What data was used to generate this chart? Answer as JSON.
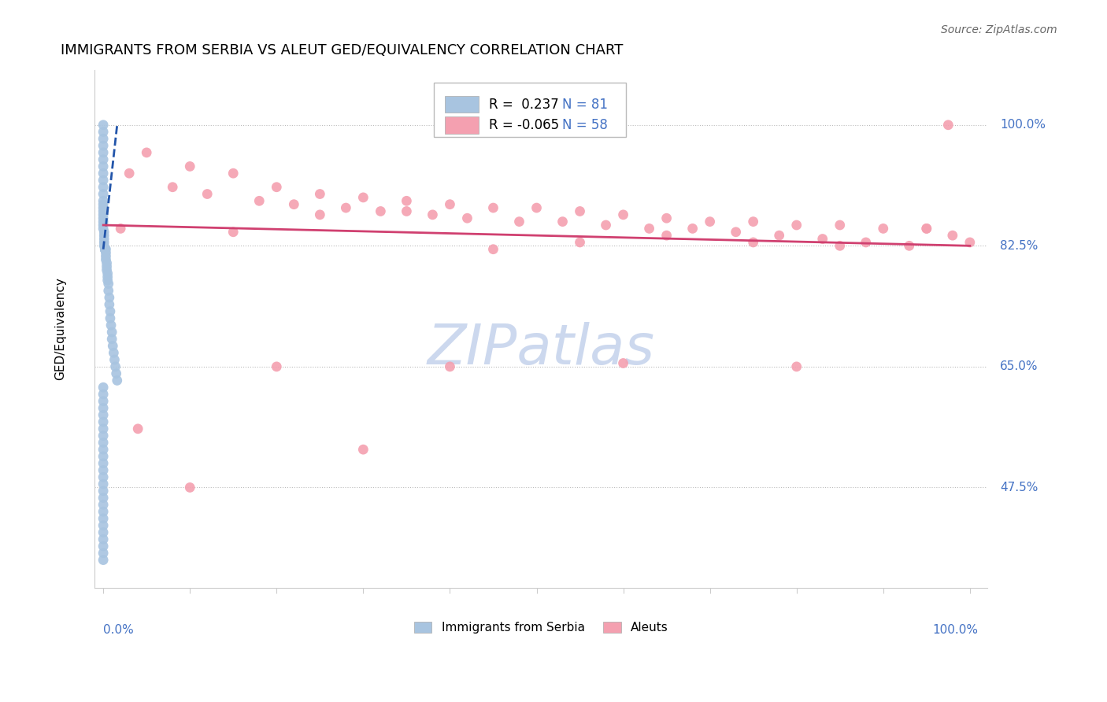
{
  "title": "IMMIGRANTS FROM SERBIA VS ALEUT GED/EQUIVALENCY CORRELATION CHART",
  "source": "Source: ZipAtlas.com",
  "ylabel": "GED/Equivalency",
  "y_tick_vals": [
    100.0,
    82.5,
    65.0,
    47.5
  ],
  "legend_r1": "R =  0.237",
  "legend_n1": "N = 81",
  "legend_r2": "R = -0.065",
  "legend_n2": "N = 58",
  "serbia_color": "#a8c4e0",
  "aleut_color": "#f4a0b0",
  "serbia_line_color": "#2255aa",
  "aleut_line_color": "#d04070",
  "watermark_color": "#ccd8ee",
  "serbia_x": [
    0.0,
    0.0,
    0.0,
    0.0,
    0.0,
    0.0,
    0.0,
    0.0,
    0.0,
    0.0,
    0.0,
    0.0,
    0.0,
    0.0,
    0.0,
    0.0,
    0.0,
    0.0,
    0.0,
    0.0,
    0.1,
    0.1,
    0.1,
    0.1,
    0.1,
    0.2,
    0.2,
    0.2,
    0.2,
    0.2,
    0.3,
    0.3,
    0.3,
    0.3,
    0.4,
    0.4,
    0.4,
    0.5,
    0.5,
    0.5,
    0.6,
    0.6,
    0.7,
    0.7,
    0.8,
    0.8,
    0.9,
    1.0,
    1.0,
    1.1,
    1.2,
    1.3,
    1.4,
    1.5,
    1.6,
    0.0,
    0.0,
    0.0,
    0.0,
    0.0,
    0.0,
    0.0,
    0.0,
    0.0,
    0.0,
    0.0,
    0.0,
    0.0,
    0.0,
    0.0,
    0.0,
    0.0,
    0.0,
    0.0,
    0.0,
    0.0,
    0.0,
    0.0,
    0.0,
    0.0,
    0.0
  ],
  "serbia_y": [
    100.0,
    99.0,
    98.0,
    97.0,
    96.0,
    95.0,
    94.0,
    93.0,
    92.0,
    91.0,
    90.0,
    89.0,
    88.5,
    88.0,
    87.5,
    87.0,
    86.5,
    86.0,
    85.5,
    85.0,
    84.5,
    84.0,
    83.5,
    83.0,
    82.5,
    82.0,
    82.0,
    82.0,
    82.0,
    82.0,
    82.0,
    81.5,
    81.0,
    80.5,
    80.0,
    79.5,
    79.0,
    78.5,
    78.0,
    77.5,
    77.0,
    76.0,
    75.0,
    74.0,
    73.0,
    72.0,
    71.0,
    70.0,
    69.0,
    68.0,
    67.0,
    66.0,
    65.0,
    64.0,
    63.0,
    62.0,
    61.0,
    60.0,
    59.0,
    58.0,
    57.0,
    56.0,
    55.0,
    54.0,
    53.0,
    52.0,
    51.0,
    50.0,
    49.0,
    48.0,
    47.0,
    46.0,
    45.0,
    44.0,
    43.0,
    42.0,
    41.0,
    40.0,
    39.0,
    38.0,
    37.0
  ],
  "aleut_x": [
    97.5,
    5.0,
    10.0,
    15.0,
    20.0,
    25.0,
    30.0,
    35.0,
    40.0,
    45.0,
    50.0,
    55.0,
    60.0,
    65.0,
    70.0,
    75.0,
    80.0,
    85.0,
    90.0,
    95.0,
    3.0,
    8.0,
    12.0,
    18.0,
    22.0,
    28.0,
    32.0,
    38.0,
    42.0,
    48.0,
    53.0,
    58.0,
    63.0,
    68.0,
    73.0,
    78.0,
    83.0,
    88.0,
    93.0,
    98.0,
    2.0,
    15.0,
    25.0,
    35.0,
    45.0,
    55.0,
    65.0,
    75.0,
    85.0,
    95.0,
    4.0,
    20.0,
    40.0,
    60.0,
    80.0,
    100.0,
    10.0,
    30.0
  ],
  "aleut_y": [
    100.0,
    96.0,
    94.0,
    93.0,
    91.0,
    90.0,
    89.5,
    89.0,
    88.5,
    88.0,
    88.0,
    87.5,
    87.0,
    86.5,
    86.0,
    86.0,
    85.5,
    85.5,
    85.0,
    85.0,
    93.0,
    91.0,
    90.0,
    89.0,
    88.5,
    88.0,
    87.5,
    87.0,
    86.5,
    86.0,
    86.0,
    85.5,
    85.0,
    85.0,
    84.5,
    84.0,
    83.5,
    83.0,
    82.5,
    84.0,
    85.0,
    84.5,
    87.0,
    87.5,
    82.0,
    83.0,
    84.0,
    83.0,
    82.5,
    85.0,
    56.0,
    65.0,
    65.0,
    65.5,
    65.0,
    83.0,
    47.5,
    53.0
  ]
}
